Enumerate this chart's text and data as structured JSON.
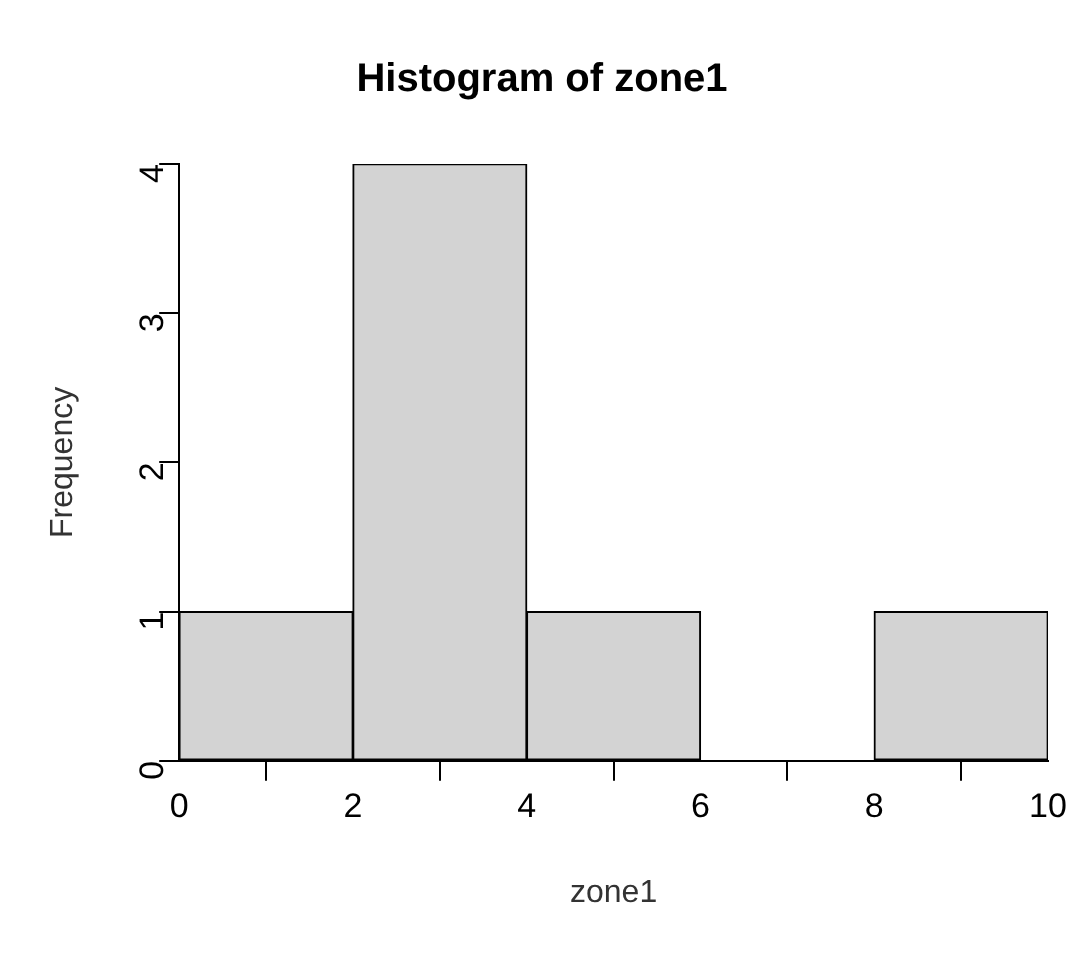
{
  "chart_data": {
    "type": "histogram",
    "title": "Histogram of zone1",
    "xlabel": "zone1",
    "ylabel": "Frequency",
    "bins": [
      0,
      2,
      4,
      6,
      8,
      10
    ],
    "values": [
      1,
      4,
      1,
      0,
      1
    ],
    "color": "#d3d3d3",
    "xlim": [
      0,
      10
    ],
    "xticks": [
      0,
      2,
      4,
      6,
      8,
      10
    ],
    "ylim": [
      0,
      4
    ],
    "yticks": [
      0,
      1,
      2,
      3,
      4
    ]
  }
}
